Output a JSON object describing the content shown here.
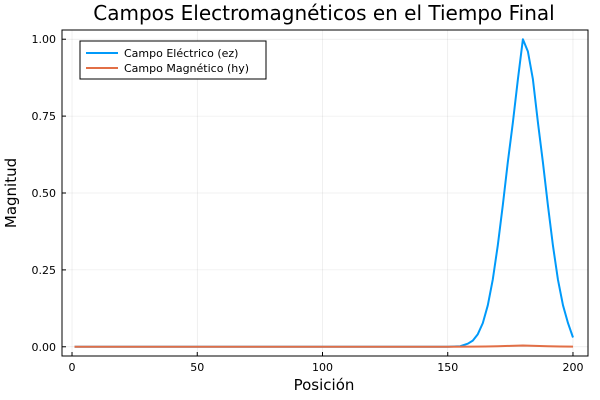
{
  "chart_data": {
    "type": "line",
    "title": "Campos Electromagnéticos en el Tiempo Final",
    "xlabel": "Posición",
    "ylabel": "Magnitud",
    "xlim": [
      -4,
      206
    ],
    "ylim": [
      -0.03,
      1.03
    ],
    "xticks": [
      0,
      50,
      100,
      150,
      200
    ],
    "xtick_labels": [
      "0",
      "50",
      "100",
      "150",
      "200"
    ],
    "yticks": [
      0,
      0.25,
      0.5,
      0.75,
      1.0
    ],
    "ytick_labels": [
      "0.00",
      "0.25",
      "0.50",
      "0.75",
      "1.00"
    ],
    "grid": true,
    "legend_position": "top-left",
    "series": [
      {
        "name": "Campo Eléctrico (ez)",
        "color": "#009AFA",
        "x": [
          1,
          20,
          40,
          60,
          80,
          100,
          120,
          140,
          150,
          155,
          158,
          160,
          162,
          164,
          166,
          168,
          170,
          172,
          174,
          176,
          178,
          180,
          182,
          184,
          186,
          188,
          190,
          192,
          194,
          196,
          198,
          200
        ],
        "y": [
          0,
          0,
          0,
          0,
          0,
          0,
          0,
          0,
          0,
          0.002,
          0.01,
          0.02,
          0.041,
          0.077,
          0.135,
          0.219,
          0.33,
          0.46,
          0.6,
          0.73,
          0.87,
          1.0,
          0.96,
          0.87,
          0.73,
          0.6,
          0.46,
          0.33,
          0.219,
          0.135,
          0.077,
          0.03
        ]
      },
      {
        "name": "Campo Magnético (hy)",
        "color": "#E26F46",
        "x": [
          1,
          20,
          40,
          60,
          80,
          100,
          120,
          140,
          150,
          160,
          165,
          170,
          175,
          180,
          185,
          190,
          195,
          200
        ],
        "y": [
          0,
          0,
          0,
          0,
          0,
          0,
          0,
          0,
          0,
          0.0005,
          0.001,
          0.002,
          0.003,
          0.004,
          0.003,
          0.002,
          0.001,
          0.0005
        ]
      }
    ]
  }
}
